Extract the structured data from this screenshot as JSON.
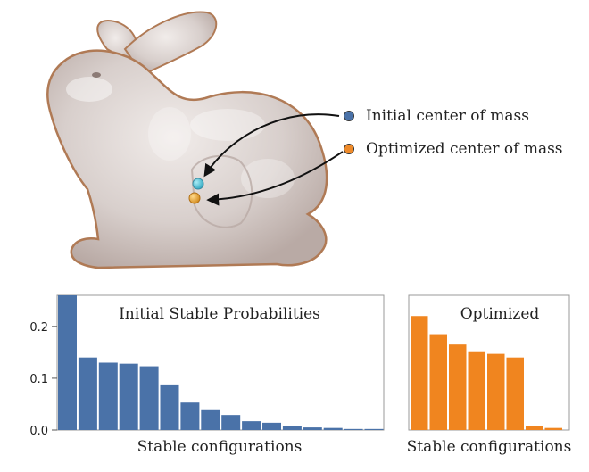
{
  "colors": {
    "initial": "#4a72a8",
    "optimized": "#f0851f",
    "initial_dot": "#4a72a8",
    "optimized_dot": "#ee8a2a"
  },
  "legend": {
    "initial_label": "Initial center of mass",
    "optimized_label": "Optimized center of mass"
  },
  "chart_data": [
    {
      "type": "bar",
      "title": "Initial Stable Probabilities",
      "xlabel": "Stable configurations",
      "ylabel": "",
      "ylim": [
        0,
        0.26
      ],
      "yticks": [
        0.0,
        0.1,
        0.2
      ],
      "ytick_labels": [
        "0.0",
        "0.1",
        "0.2"
      ],
      "values": [
        0.26,
        0.14,
        0.13,
        0.128,
        0.123,
        0.088,
        0.053,
        0.04,
        0.029,
        0.017,
        0.014,
        0.008,
        0.005,
        0.004,
        0.002,
        0.002
      ],
      "color": "#4a72a8",
      "grid": false
    },
    {
      "type": "bar",
      "title": "Optimized",
      "xlabel": "Stable configurations",
      "ylabel": "",
      "ylim": [
        0,
        0.26
      ],
      "values": [
        0.22,
        0.185,
        0.165,
        0.152,
        0.147,
        0.14,
        0.008,
        0.004
      ],
      "color": "#f0851f",
      "grid": false
    }
  ]
}
